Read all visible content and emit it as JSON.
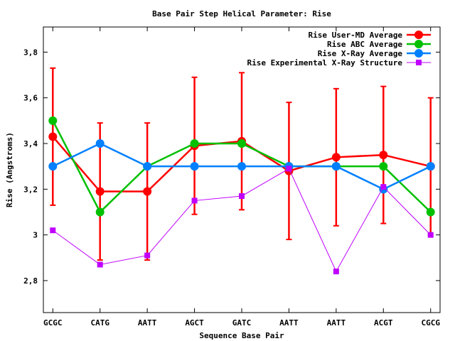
{
  "chart_data": {
    "type": "line",
    "title": "Base Pair Step Helical Parameter: Rise",
    "xlabel": "Sequence Base Pair",
    "ylabel": "Rise (Angstroms)",
    "categories": [
      "GCGC",
      "CATG",
      "AATT",
      "AGCT",
      "GATC",
      "AATT",
      "AATT",
      "ACGT",
      "CGCG"
    ],
    "xlim": [
      -0.2,
      8.2
    ],
    "ylim": [
      2.66,
      3.91
    ],
    "yticks": [
      2.8,
      3,
      3.2,
      3.4,
      3.6,
      3.8
    ],
    "ytick_labels": [
      "2,8",
      "3",
      "3,2",
      "3,4",
      "3,6",
      "3,8"
    ],
    "grid": false,
    "legend_position": "top-right",
    "series": [
      {
        "name": "Rise User-MD Average",
        "color": "#ff0000",
        "marker": "circle",
        "values": [
          3.43,
          3.19,
          3.19,
          3.39,
          3.41,
          3.28,
          3.34,
          3.35,
          3.3
        ],
        "error_low": [
          3.13,
          2.89,
          2.89,
          3.09,
          3.11,
          2.98,
          3.04,
          3.05,
          3.0
        ],
        "error_high": [
          3.73,
          3.49,
          3.49,
          3.69,
          3.71,
          3.58,
          3.64,
          3.65,
          3.6
        ]
      },
      {
        "name": "Rise ABC Average",
        "color": "#00c000",
        "marker": "circle",
        "values": [
          3.5,
          3.1,
          3.3,
          3.4,
          3.4,
          3.3,
          3.3,
          3.3,
          3.1
        ]
      },
      {
        "name": "Rise X-Ray Average",
        "color": "#0080ff",
        "marker": "circle",
        "values": [
          3.3,
          3.4,
          3.3,
          3.3,
          3.3,
          3.3,
          3.3,
          3.2,
          3.3
        ]
      },
      {
        "name": "Rise Experimental X-Ray Structure",
        "color": "#c000ff",
        "marker": "square",
        "values": [
          3.02,
          2.87,
          2.91,
          3.15,
          3.17,
          3.29,
          2.84,
          3.21,
          3.0
        ]
      }
    ]
  }
}
